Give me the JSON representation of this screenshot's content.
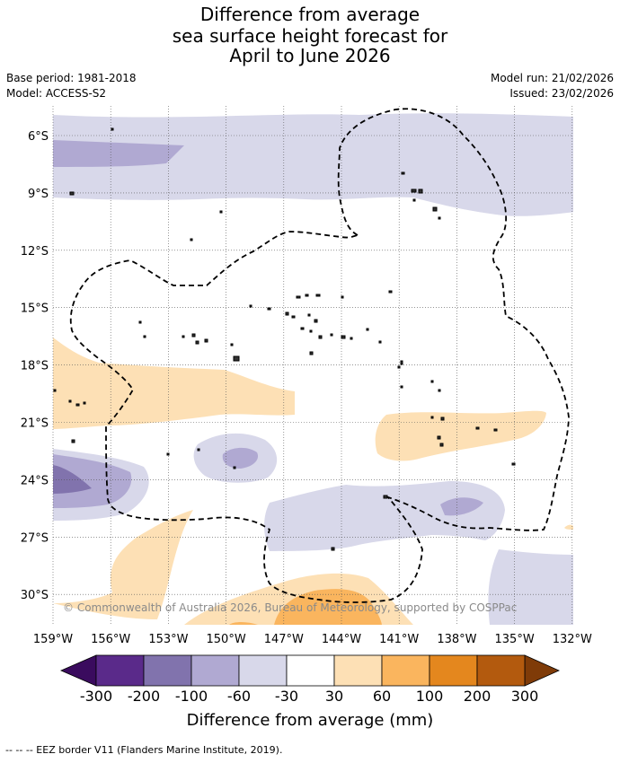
{
  "title": {
    "line1": "Difference from average",
    "line2": "sea surface height forecast for",
    "line3": "April to June 2026"
  },
  "meta": {
    "base_period": "Base period: 1981-2018",
    "model": "Model: ACCESS-S2",
    "model_run": "Model run: 21/02/2026",
    "issued": "Issued: 23/02/2026"
  },
  "map": {
    "latitude_labels": [
      "6°S",
      "9°S",
      "12°S",
      "15°S",
      "18°S",
      "21°S",
      "24°S",
      "27°S",
      "30°S"
    ],
    "longitude_labels": [
      "159°W",
      "156°W",
      "153°W",
      "150°W",
      "147°W",
      "144°W",
      "141°W",
      "138°W",
      "135°W",
      "132°W"
    ],
    "copyright": "© Commonwealth of Australia 2026, Bureau of Meteorology, supported by COSPPac",
    "colors": {
      "neg300": "#3a0b5e",
      "neg200": "#5a2a8a",
      "neg100": "#8173ad",
      "neg60": "#b0a9d2",
      "neg30": "#d8d8ea",
      "neutral": "#ffffff",
      "pos30": "#fde0b5",
      "pos60": "#fab55e",
      "pos100": "#e4871e",
      "pos200": "#b35a0e",
      "pos300": "#7f3b08"
    }
  },
  "colorbar": {
    "ticks": [
      "-300",
      "-200",
      "-100",
      "-60",
      "-30",
      "30",
      "60",
      "100",
      "200",
      "300"
    ],
    "title": "Difference from average (mm)"
  },
  "footnote": "--  --  -- EEZ border V11 (Flanders Marine Institute, 2019)."
}
